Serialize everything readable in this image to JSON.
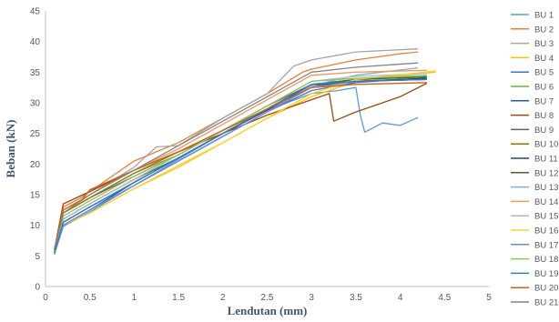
{
  "chart_data": {
    "type": "line",
    "title": "",
    "xlabel": "Lendutan (mm)",
    "ylabel": "Beban (kN)",
    "xlim": [
      0,
      5
    ],
    "ylim": [
      0,
      45
    ],
    "x_ticks": [
      "0",
      "0.5",
      "1",
      "1.5",
      "2",
      "2.5",
      "3",
      "3.5",
      "4",
      "4.5",
      "5"
    ],
    "y_ticks": [
      "0",
      "5",
      "10",
      "15",
      "20",
      "25",
      "30",
      "35",
      "40",
      "45"
    ],
    "grid": false,
    "legend_position": "right",
    "series": [
      {
        "name": "BU 1",
        "color": "#5b9bd5",
        "points": [
          [
            0.1,
            5.2
          ],
          [
            0.2,
            9.8
          ],
          [
            0.5,
            12.2
          ],
          [
            1,
            16.5
          ],
          [
            1.5,
            20.8
          ],
          [
            2,
            25
          ],
          [
            2.5,
            28.8
          ],
          [
            3,
            31.5
          ],
          [
            3.3,
            32
          ],
          [
            3.5,
            32.5
          ],
          [
            3.55,
            28
          ],
          [
            3.6,
            25.2
          ],
          [
            3.8,
            26.7
          ],
          [
            4,
            26.3
          ],
          [
            4.2,
            27.6
          ]
        ]
      },
      {
        "name": "BU 2",
        "color": "#ed7d31",
        "points": [
          [
            0.1,
            6
          ],
          [
            0.2,
            13
          ],
          [
            0.4,
            14.5
          ],
          [
            0.5,
            15.5
          ],
          [
            1,
            20.5
          ],
          [
            1.5,
            23.5
          ],
          [
            2,
            27.5
          ],
          [
            2.5,
            31.5
          ],
          [
            2.9,
            35
          ],
          [
            3,
            35.5
          ],
          [
            3.5,
            37
          ],
          [
            4,
            38
          ],
          [
            4.2,
            38.3
          ]
        ]
      },
      {
        "name": "BU 3",
        "color": "#a5a5a5",
        "points": [
          [
            0.1,
            6
          ],
          [
            0.2,
            12
          ],
          [
            0.5,
            15
          ],
          [
            1,
            19.5
          ],
          [
            1.25,
            22.8
          ],
          [
            1.5,
            23
          ],
          [
            2,
            27.5
          ],
          [
            2.5,
            31.5
          ],
          [
            2.8,
            36
          ],
          [
            3,
            37
          ],
          [
            3.5,
            38.3
          ],
          [
            4.2,
            38.8
          ]
        ]
      },
      {
        "name": "BU 4",
        "color": "#ffc000",
        "points": [
          [
            0.1,
            5.5
          ],
          [
            0.2,
            10
          ],
          [
            0.5,
            12
          ],
          [
            1,
            16
          ],
          [
            1.5,
            19.5
          ],
          [
            2,
            23.5
          ],
          [
            2.5,
            27.5
          ],
          [
            3,
            31
          ],
          [
            3.5,
            33.5
          ],
          [
            4,
            34.5
          ],
          [
            4.4,
            35
          ]
        ]
      },
      {
        "name": "BU 5",
        "color": "#4472c4",
        "points": [
          [
            0.1,
            5.5
          ],
          [
            0.2,
            10
          ],
          [
            0.5,
            12.5
          ],
          [
            1,
            16.5
          ],
          [
            1.5,
            20.5
          ],
          [
            2,
            24.5
          ],
          [
            2.5,
            28.5
          ],
          [
            3,
            32
          ],
          [
            3.5,
            33.3
          ],
          [
            4,
            33.8
          ],
          [
            4.3,
            34
          ]
        ]
      },
      {
        "name": "BU 6",
        "color": "#70ad47",
        "points": [
          [
            0.1,
            6
          ],
          [
            0.2,
            12
          ],
          [
            0.5,
            14.5
          ],
          [
            1,
            18.5
          ],
          [
            1.5,
            21.5
          ],
          [
            2,
            25.5
          ],
          [
            2.5,
            29
          ],
          [
            3,
            33
          ],
          [
            3.5,
            33.8
          ],
          [
            4.3,
            34.3
          ]
        ]
      },
      {
        "name": "BU 7",
        "color": "#255e91",
        "points": [
          [
            0.1,
            5.5
          ],
          [
            0.2,
            10
          ],
          [
            0.5,
            12.5
          ],
          [
            1,
            17
          ],
          [
            1.5,
            21
          ],
          [
            2,
            25
          ],
          [
            2.5,
            29
          ],
          [
            3,
            33
          ],
          [
            3.5,
            33.5
          ],
          [
            4.3,
            33.8
          ]
        ]
      },
      {
        "name": "BU 8",
        "color": "#9e480e",
        "points": [
          [
            0.1,
            6
          ],
          [
            0.2,
            13.5
          ],
          [
            0.5,
            15.5
          ],
          [
            1,
            19
          ],
          [
            1.5,
            22
          ],
          [
            2,
            25
          ],
          [
            2.5,
            28
          ],
          [
            3,
            30.5
          ],
          [
            3.2,
            31.5
          ],
          [
            3.25,
            27
          ],
          [
            3.5,
            28.5
          ],
          [
            4,
            31
          ],
          [
            4.3,
            33.2
          ]
        ]
      },
      {
        "name": "BU 9",
        "color": "#636363",
        "points": [
          [
            0.1,
            6
          ],
          [
            0.2,
            12
          ],
          [
            0.5,
            14.5
          ],
          [
            1,
            18
          ],
          [
            1.5,
            21.5
          ],
          [
            2,
            25.5
          ],
          [
            2.5,
            29.5
          ],
          [
            3,
            33
          ],
          [
            3.5,
            33.5
          ],
          [
            4.3,
            33.8
          ]
        ]
      },
      {
        "name": "BU 10",
        "color": "#997300",
        "points": [
          [
            0.1,
            6
          ],
          [
            0.2,
            12
          ],
          [
            0.5,
            14.5
          ],
          [
            1,
            18.5
          ],
          [
            1.5,
            22
          ],
          [
            2,
            25.5
          ],
          [
            2.5,
            29
          ],
          [
            3,
            32.5
          ],
          [
            3.5,
            33.5
          ],
          [
            4.3,
            34
          ]
        ]
      },
      {
        "name": "BU 11",
        "color": "#264478",
        "points": [
          [
            0.1,
            5.5
          ],
          [
            0.2,
            10.5
          ],
          [
            0.5,
            13
          ],
          [
            1,
            17
          ],
          [
            1.5,
            21
          ],
          [
            2,
            25
          ],
          [
            2.5,
            28.8
          ],
          [
            3,
            32.8
          ],
          [
            3.5,
            33.5
          ],
          [
            4.3,
            34
          ]
        ]
      },
      {
        "name": "BU 12",
        "color": "#43682b",
        "points": [
          [
            0.1,
            5.5
          ],
          [
            0.2,
            11
          ],
          [
            0.5,
            13.5
          ],
          [
            1,
            17.5
          ],
          [
            1.5,
            21
          ],
          [
            2,
            25
          ],
          [
            2.5,
            29
          ],
          [
            3,
            33
          ],
          [
            3.5,
            33.8
          ],
          [
            4.3,
            34.2
          ]
        ]
      },
      {
        "name": "BU 13",
        "color": "#7cafdd",
        "points": [
          [
            0.1,
            5.5
          ],
          [
            0.2,
            10
          ],
          [
            0.5,
            12.5
          ],
          [
            1,
            16.5
          ],
          [
            1.5,
            20.5
          ],
          [
            2,
            24.5
          ],
          [
            2.5,
            28.5
          ],
          [
            3,
            32.8
          ],
          [
            3.5,
            34.5
          ],
          [
            4.2,
            35.7
          ]
        ]
      },
      {
        "name": "BU 14",
        "color": "#f1975a",
        "points": [
          [
            0.1,
            6
          ],
          [
            0.2,
            12.5
          ],
          [
            0.5,
            15
          ],
          [
            1,
            19
          ],
          [
            1.5,
            22.5
          ],
          [
            2,
            26.5
          ],
          [
            2.5,
            30.5
          ],
          [
            3,
            34.5
          ],
          [
            3.5,
            35
          ],
          [
            4.3,
            35.3
          ]
        ]
      },
      {
        "name": "BU 15",
        "color": "#b7b7b7",
        "points": [
          [
            0.1,
            5.5
          ],
          [
            0.2,
            11
          ],
          [
            0.5,
            13.5
          ],
          [
            1,
            17.5
          ],
          [
            1.5,
            21.5
          ],
          [
            2,
            25.5
          ],
          [
            2.5,
            29.5
          ],
          [
            3,
            33.5
          ],
          [
            3.5,
            34.3
          ],
          [
            4.3,
            34.8
          ]
        ]
      },
      {
        "name": "BU 16",
        "color": "#ffcd33",
        "points": [
          [
            0.1,
            5.5
          ],
          [
            0.2,
            10
          ],
          [
            0.5,
            12
          ],
          [
            1,
            16
          ],
          [
            1.5,
            19.8
          ],
          [
            2,
            23.5
          ],
          [
            2.5,
            27.5
          ],
          [
            3,
            31.5
          ],
          [
            3.5,
            33.8
          ],
          [
            4.4,
            35.2
          ]
        ]
      },
      {
        "name": "BU 17",
        "color": "#698ed0",
        "points": [
          [
            0.1,
            5.5
          ],
          [
            0.2,
            10
          ],
          [
            0.5,
            12.5
          ],
          [
            1,
            16.5
          ],
          [
            1.5,
            20.5
          ],
          [
            2,
            24.5
          ],
          [
            2.5,
            28.5
          ],
          [
            3,
            32.5
          ],
          [
            3.5,
            33.5
          ],
          [
            4.3,
            33.8
          ]
        ]
      },
      {
        "name": "BU 18",
        "color": "#8cc168",
        "points": [
          [
            0.1,
            6
          ],
          [
            0.2,
            11.5
          ],
          [
            0.5,
            14
          ],
          [
            1,
            18
          ],
          [
            1.5,
            21.5
          ],
          [
            2,
            25.5
          ],
          [
            2.5,
            29.5
          ],
          [
            3,
            33.5
          ],
          [
            3.5,
            34
          ],
          [
            4.3,
            34.5
          ]
        ]
      },
      {
        "name": "BU 19",
        "color": "#327dc2",
        "points": [
          [
            0.1,
            5.5
          ],
          [
            0.2,
            10.5
          ],
          [
            0.5,
            13
          ],
          [
            1,
            17
          ],
          [
            1.5,
            21
          ],
          [
            2,
            25
          ],
          [
            2.5,
            29
          ],
          [
            3,
            33
          ],
          [
            3.5,
            33.5
          ],
          [
            4.3,
            33.8
          ]
        ]
      },
      {
        "name": "BU 20",
        "color": "#d26012",
        "points": [
          [
            0.1,
            6
          ],
          [
            0.2,
            12.5
          ],
          [
            0.4,
            14
          ],
          [
            0.5,
            15.8
          ],
          [
            1,
            19
          ],
          [
            1.5,
            22
          ],
          [
            2,
            25.5
          ],
          [
            2.5,
            29
          ],
          [
            3,
            32.5
          ],
          [
            3.5,
            33
          ],
          [
            4.3,
            33.3
          ]
        ]
      },
      {
        "name": "BU 21",
        "color": "#848484",
        "points": [
          [
            0.1,
            6
          ],
          [
            0.2,
            12
          ],
          [
            0.5,
            15
          ],
          [
            1,
            19
          ],
          [
            1.5,
            23
          ],
          [
            2,
            27
          ],
          [
            2.5,
            31
          ],
          [
            3,
            35
          ],
          [
            3.5,
            35.8
          ],
          [
            4.2,
            36.5
          ]
        ]
      }
    ]
  }
}
